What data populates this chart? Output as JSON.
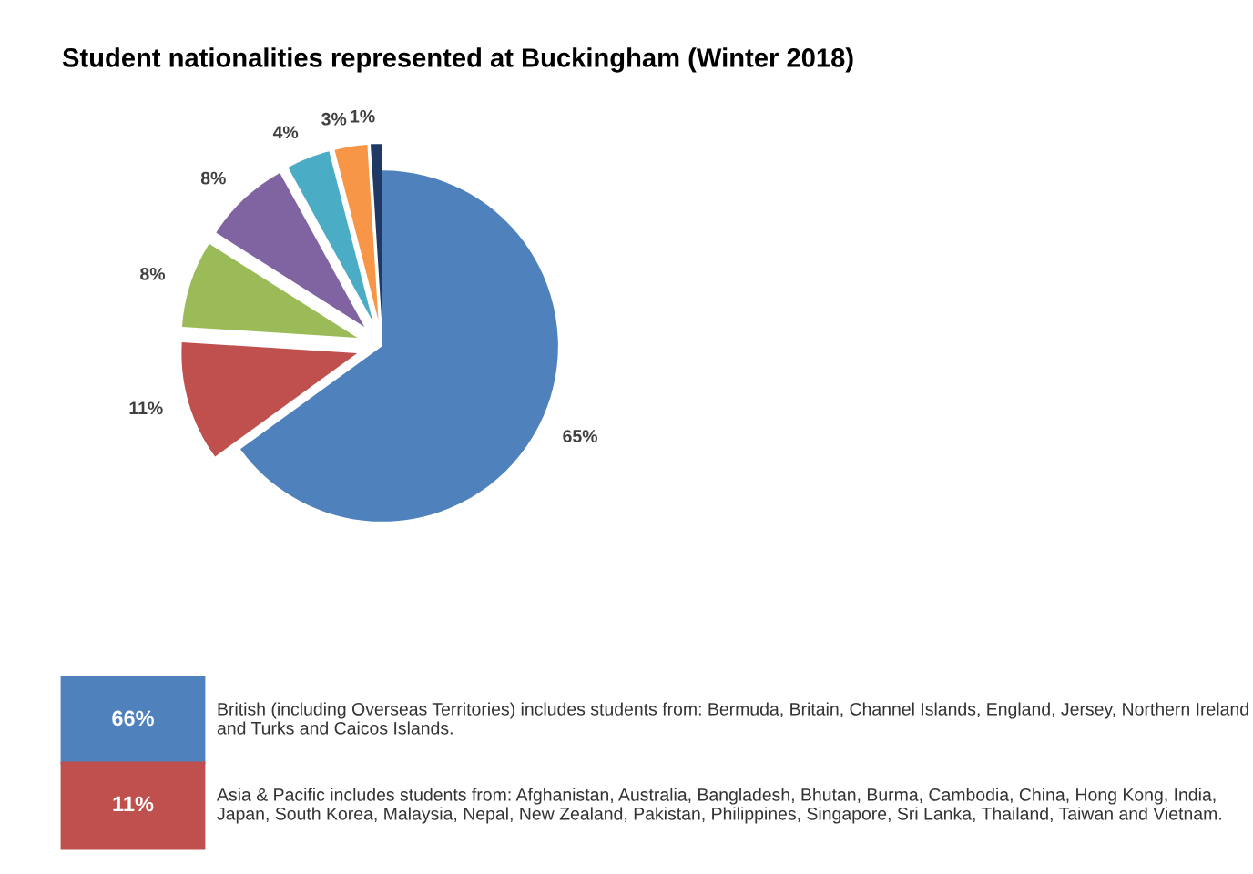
{
  "chart_data": {
    "type": "pie",
    "title": "Student nationalities represented at Buckingham (Winter 2018)",
    "categories": [
      null,
      null,
      null,
      null,
      null,
      null,
      null
    ],
    "values": [
      65,
      11,
      8,
      8,
      4,
      3,
      1
    ],
    "colors": [
      "#4f81bd",
      "#c0504d",
      "#9bbb59",
      "#8064a2",
      "#4bacc6",
      "#f79646",
      "#1f3864"
    ],
    "value_labels": [
      "65%",
      "11%",
      "8%",
      "8%",
      "4%",
      "3%",
      "1%"
    ],
    "legend": false,
    "annotations": [
      "66%",
      "British (including Overseas Territories) includes students from: Bermuda, Britain, Channel Islands, England, Jersey, Northern Ireland and Turks and Caicos Islands.",
      "11%",
      "Asia & Pacific includes students from: Afghanistan, Australia, Bangladesh, Bhutan, Burma, Cambodia, China, Hong Kong, India, Japan, South Korea, Malaysia, Nepal, New Zealand, Pakistan, Philippines, Singapore, Sri Lanka, Thailand, Taiwan and Vietnam."
    ]
  }
}
